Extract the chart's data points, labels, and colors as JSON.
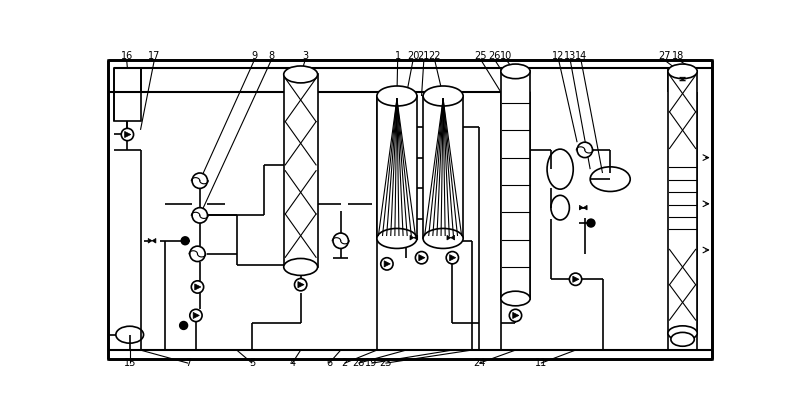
{
  "bg_color": "#ffffff",
  "line_color": "#000000",
  "lw": 1.2,
  "tlw": 0.8,
  "fig_w": 8.0,
  "fig_h": 4.15,
  "dpi": 100
}
